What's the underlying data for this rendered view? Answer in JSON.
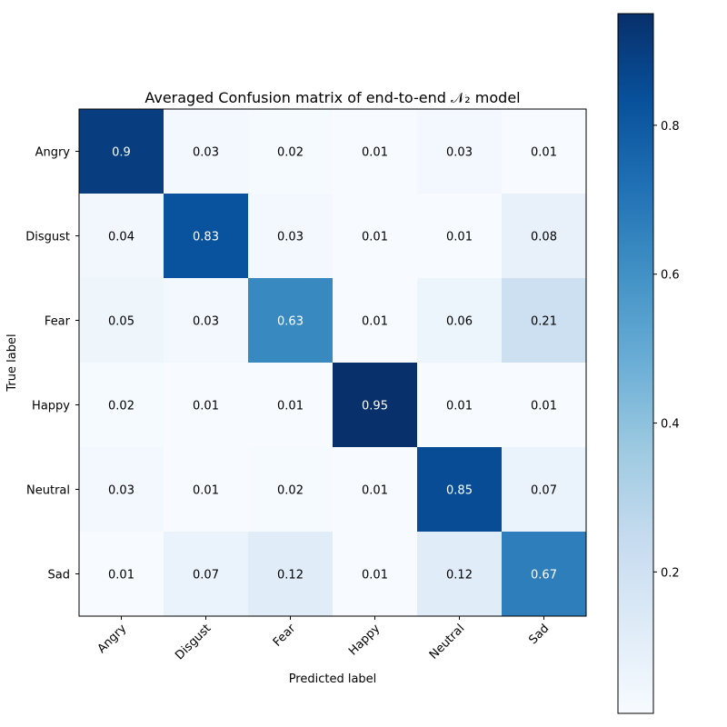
{
  "chart_data": {
    "type": "heatmap",
    "title": "Averaged Confusion matrix of end-to-end 𝒩₂ model",
    "xlabel": "Predicted label",
    "ylabel": "True label",
    "x_categories": [
      "Angry",
      "Disgust",
      "Fear",
      "Happy",
      "Neutral",
      "Sad"
    ],
    "y_categories": [
      "Angry",
      "Disgust",
      "Fear",
      "Happy",
      "Neutral",
      "Sad"
    ],
    "values": [
      [
        0.9,
        0.03,
        0.02,
        0.01,
        0.03,
        0.01
      ],
      [
        0.04,
        0.83,
        0.03,
        0.01,
        0.01,
        0.08
      ],
      [
        0.05,
        0.03,
        0.63,
        0.01,
        0.06,
        0.21
      ],
      [
        0.02,
        0.01,
        0.01,
        0.95,
        0.01,
        0.01
      ],
      [
        0.03,
        0.01,
        0.02,
        0.01,
        0.85,
        0.07
      ],
      [
        0.01,
        0.07,
        0.12,
        0.01,
        0.12,
        0.67
      ]
    ],
    "colormap": "Blues",
    "colorbar": {
      "range": [
        0.01,
        0.95
      ],
      "ticks": [
        0.2,
        0.4,
        0.6,
        0.8
      ],
      "tick_labels": [
        "0.2",
        "0.4",
        "0.6",
        "0.8"
      ]
    },
    "x_tick_rotation_deg": 45,
    "grid": false,
    "text_colors": {
      "dark": "#000000",
      "light": "#ffffff"
    }
  }
}
